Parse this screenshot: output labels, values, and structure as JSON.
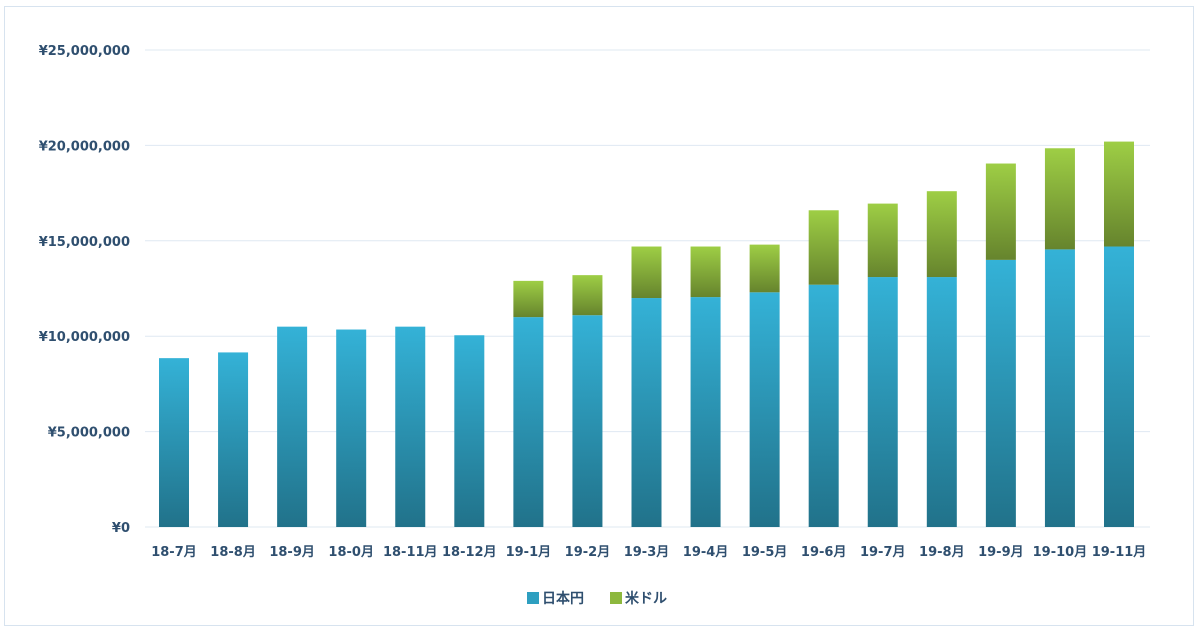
{
  "chart_data": {
    "type": "bar",
    "stacked": true,
    "categories": [
      "18-7月",
      "18-8月",
      "18-9月",
      "18-0月",
      "18-11月",
      "18-12月",
      "19-1月",
      "19-2月",
      "19-3月",
      "19-4月",
      "19-5月",
      "19-6月",
      "19-7月",
      "19-8月",
      "19-9月",
      "19-10月",
      "19-11月"
    ],
    "series": [
      {
        "name": "日本円",
        "color": "#2e9fc0",
        "values": [
          8850000,
          9150000,
          10500000,
          10350000,
          10500000,
          10050000,
          11000000,
          11100000,
          12000000,
          12050000,
          12300000,
          12700000,
          13100000,
          13100000,
          14000000,
          14550000,
          14700000
        ]
      },
      {
        "name": "米ドル",
        "color": "#8db83e",
        "values": [
          0,
          0,
          0,
          0,
          0,
          0,
          1900000,
          2100000,
          2700000,
          2650000,
          2500000,
          3900000,
          3850000,
          4500000,
          5050000,
          5300000,
          5500000
        ]
      }
    ],
    "ylim": [
      0,
      25000000
    ],
    "y_ticks": [
      0,
      5000000,
      10000000,
      15000000,
      20000000,
      25000000
    ],
    "y_tick_labels": [
      "¥0",
      "¥5,000,000",
      "¥10,000,000",
      "¥15,000,000",
      "¥20,000,000",
      "¥25,000,000"
    ],
    "grid": true,
    "legend_position": "bottom"
  }
}
